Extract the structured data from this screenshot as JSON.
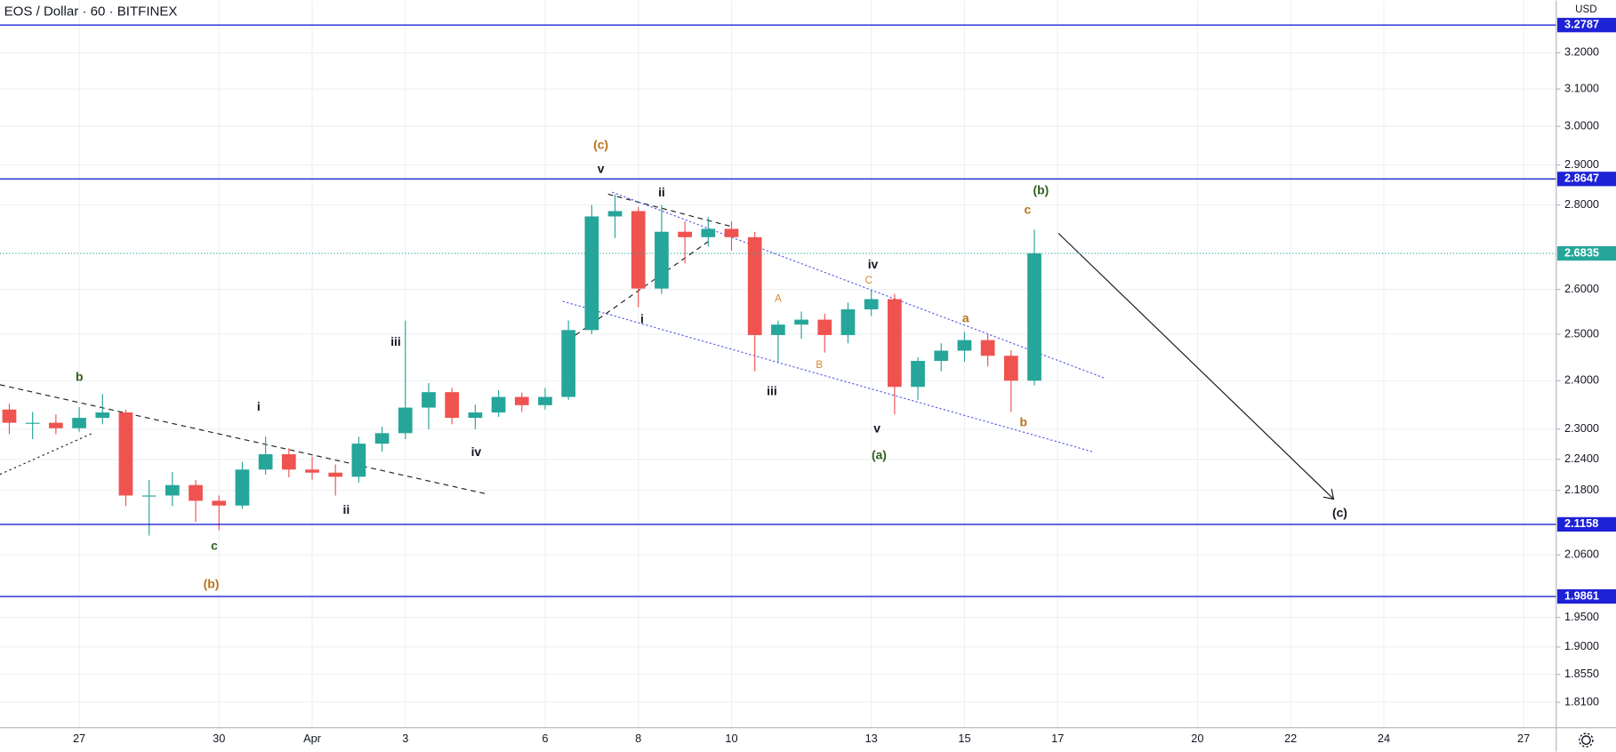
{
  "chart_data": {
    "type": "candlestick",
    "title": "EOS / Dollar · 60 · BITFINEX",
    "currency": "USD",
    "x": [
      25.5,
      26,
      26.5,
      27,
      27.5,
      28,
      28.5,
      29,
      29.5,
      30,
      30.5,
      31,
      31.5,
      32,
      32.5,
      33,
      33.5,
      34,
      34.5,
      35,
      35.5,
      36,
      36.5,
      37,
      37.5,
      38,
      38.5,
      39,
      39.5,
      40,
      40.5,
      41,
      41.5,
      42,
      42.5,
      43,
      43.5,
      44,
      44.5,
      45,
      45.5,
      46,
      46.5,
      47,
      47.5
    ],
    "open": [
      2.34,
      2.313,
      2.313,
      2.302,
      2.323,
      2.334,
      2.17,
      2.17,
      2.19,
      2.16,
      2.151,
      2.22,
      2.25,
      2.22,
      2.214,
      2.206,
      2.271,
      2.292,
      2.344,
      2.376,
      2.323,
      2.334,
      2.366,
      2.349,
      2.366,
      2.509,
      2.772,
      2.785,
      2.602,
      2.735,
      2.722,
      2.742,
      2.722,
      2.498,
      2.521,
      2.532,
      2.498,
      2.555,
      2.578,
      2.387,
      2.442,
      2.464,
      2.487,
      2.453,
      2.4
    ],
    "high": [
      2.352,
      2.335,
      2.33,
      2.345,
      2.372,
      2.34,
      2.2,
      2.215,
      2.2,
      2.17,
      2.235,
      2.285,
      2.262,
      2.245,
      2.23,
      2.285,
      2.305,
      2.53,
      2.395,
      2.385,
      2.35,
      2.38,
      2.375,
      2.385,
      2.53,
      2.8,
      2.826,
      2.795,
      2.8,
      2.76,
      2.77,
      2.76,
      2.735,
      2.53,
      2.55,
      2.545,
      2.57,
      2.6,
      2.59,
      2.45,
      2.48,
      2.505,
      2.5,
      2.465,
      2.74
    ],
    "low": [
      2.29,
      2.28,
      2.29,
      2.295,
      2.31,
      2.15,
      2.095,
      2.15,
      2.12,
      2.105,
      2.145,
      2.21,
      2.205,
      2.2,
      2.17,
      2.195,
      2.255,
      2.28,
      2.3,
      2.31,
      2.3,
      2.325,
      2.335,
      2.34,
      2.36,
      2.5,
      2.72,
      2.56,
      2.59,
      2.66,
      2.7,
      2.69,
      2.42,
      2.44,
      2.49,
      2.46,
      2.48,
      2.54,
      2.33,
      2.36,
      2.42,
      2.44,
      2.43,
      2.335,
      2.39
    ],
    "close": [
      2.313,
      2.313,
      2.302,
      2.323,
      2.334,
      2.17,
      2.17,
      2.19,
      2.16,
      2.151,
      2.22,
      2.25,
      2.22,
      2.214,
      2.206,
      2.271,
      2.292,
      2.344,
      2.376,
      2.323,
      2.334,
      2.366,
      2.349,
      2.366,
      2.509,
      2.772,
      2.785,
      2.602,
      2.735,
      2.722,
      2.742,
      2.722,
      2.498,
      2.521,
      2.532,
      2.498,
      2.555,
      2.578,
      2.387,
      2.442,
      2.464,
      2.487,
      2.453,
      2.4,
      2.6835
    ],
    "up_color": "#26a69a",
    "down_color": "#ef5350",
    "xlim": [
      25.3,
      58.7
    ],
    "xticks": [
      27,
      30,
      {
        "value": 32,
        "label": "Apr"
      },
      {
        "value": 34,
        "label": "3"
      },
      {
        "value": 37,
        "label": "6"
      },
      {
        "value": 39,
        "label": "8"
      },
      {
        "value": 41,
        "label": "10"
      },
      {
        "value": 44,
        "label": "13"
      },
      {
        "value": 46,
        "label": "15"
      },
      {
        "value": 48,
        "label": "17"
      },
      {
        "value": 51,
        "label": "20"
      },
      {
        "value": 53,
        "label": "22"
      },
      {
        "value": 55,
        "label": "24"
      },
      {
        "value": 58,
        "label": "27"
      }
    ],
    "ylim": [
      1.77,
      3.35
    ],
    "yticks": [
      {
        "value": 3.2,
        "label": "3.2000"
      },
      {
        "value": 3.1,
        "label": "3.1000"
      },
      {
        "value": 3.0,
        "label": "3.0000"
      },
      {
        "value": 2.9,
        "label": "2.9000"
      },
      {
        "value": 2.8,
        "label": "2.8000"
      },
      {
        "value": 2.6,
        "label": "2.6000"
      },
      {
        "value": 2.5,
        "label": "2.5000"
      },
      {
        "value": 2.4,
        "label": "2.4000"
      },
      {
        "value": 2.3,
        "label": "2.3000"
      },
      {
        "value": 2.24,
        "label": "2.2400"
      },
      {
        "value": 2.18,
        "label": "2.1800"
      },
      {
        "value": 2.06,
        "label": "2.0600"
      },
      {
        "value": 1.95,
        "label": "1.9500"
      },
      {
        "value": 1.9,
        "label": "1.9000"
      },
      {
        "value": 1.855,
        "label": "1.8550"
      },
      {
        "value": 1.81,
        "label": "1.8100"
      }
    ],
    "log_scale": true,
    "grid": true,
    "levels": {
      "values": [
        3.2787,
        2.8647,
        2.1158,
        1.9861
      ],
      "color": "#1e22d6"
    },
    "annotations": [
      {
        "text": "(c)",
        "color": "#b8731a"
      },
      {
        "text": "v",
        "color": "#131722"
      },
      {
        "text": "ii",
        "color": "#131722"
      },
      {
        "text": "(b)",
        "color": "#2e5f1e"
      },
      {
        "text": "c",
        "color": "#b8731a"
      },
      {
        "text": "iv",
        "color": "#131722"
      },
      {
        "text": "C",
        "color": "#d98a2b"
      },
      {
        "text": "A",
        "color": "#d98a2b"
      },
      {
        "text": "B",
        "color": "#d98a2b"
      },
      {
        "text": "i",
        "color": "#131722"
      },
      {
        "text": "iii",
        "color": "#131722"
      },
      {
        "text": "v",
        "color": "#131722"
      },
      {
        "text": "(a)",
        "color": "#2e5f1e"
      },
      {
        "text": "a",
        "color": "#b8731a"
      },
      {
        "text": "b",
        "color": "#b8731a"
      },
      {
        "text": "iii",
        "color": "#131722"
      },
      {
        "text": "i",
        "color": "#131722"
      },
      {
        "text": "iv",
        "color": "#131722"
      },
      {
        "text": "ii",
        "color": "#131722"
      },
      {
        "text": "b",
        "color": "#2e5f1e"
      },
      {
        "text": "c",
        "color": "#2e5f1e"
      },
      {
        "text": "(b)",
        "color": "#b8731a"
      },
      {
        "text": "(c)",
        "color": "#131722"
      }
    ]
  }
}
